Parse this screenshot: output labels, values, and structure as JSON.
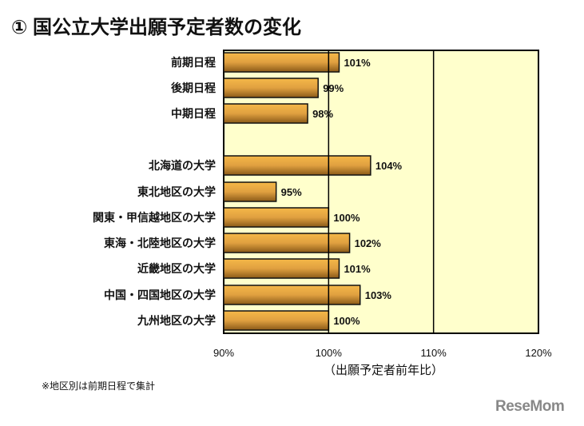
{
  "title": "① 国公立大学出願予定者数の変化",
  "note": "※地区別は前期日程で集計",
  "logo": "ReseMom",
  "chart_data": {
    "type": "bar",
    "orientation": "horizontal",
    "categories": [
      "前期日程",
      "後期日程",
      "中期日程",
      "北海道の大学",
      "東北地区の大学",
      "関東・甲信越地区の大学",
      "東海・北陸地区の大学",
      "近畿地区の大学",
      "中国・四国地区の大学",
      "九州地区の大学"
    ],
    "values": [
      101,
      99,
      98,
      104,
      95,
      100,
      102,
      101,
      103,
      100
    ],
    "labels": [
      "101%",
      "99%",
      "98%",
      "104%",
      "95%",
      "100%",
      "102%",
      "101%",
      "103%",
      "100%"
    ],
    "xlabel": "（出願予定者前年比）",
    "xlim": [
      90,
      120
    ],
    "xticks": [
      90,
      100,
      110,
      120
    ],
    "xtick_labels": [
      "90%",
      "100%",
      "110%",
      "120%"
    ],
    "grid": true,
    "colors": {
      "bar": "#e0a040",
      "plot_bg": "#ffffcc"
    }
  }
}
